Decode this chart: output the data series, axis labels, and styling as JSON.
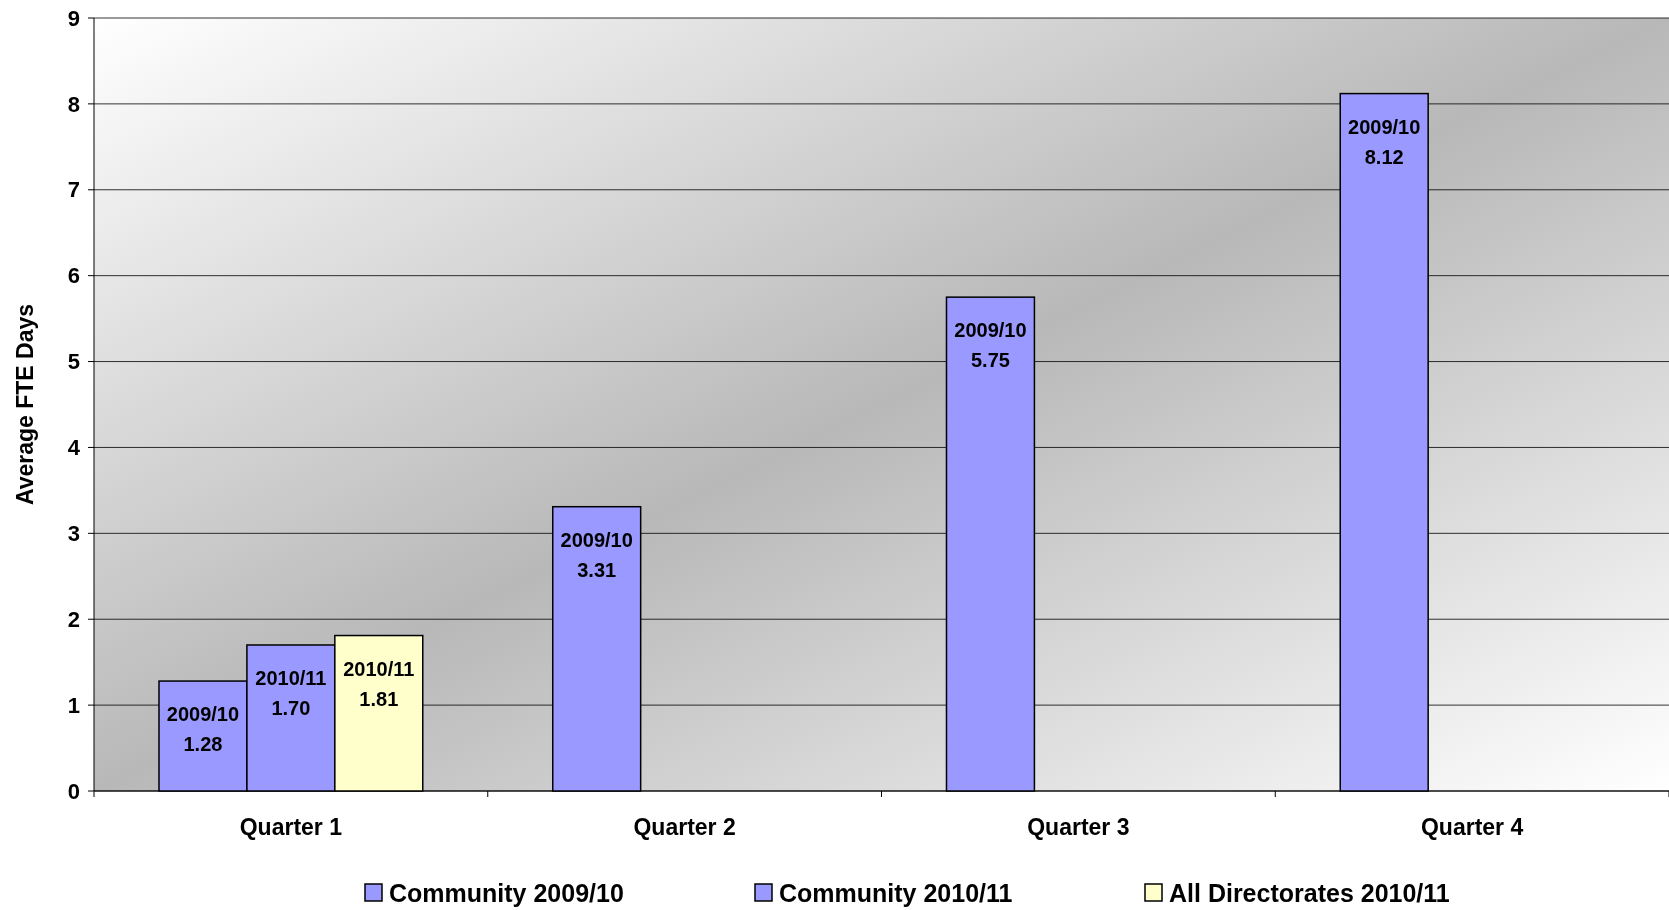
{
  "chart_data": {
    "type": "bar",
    "ylabel": "Average FTE Days",
    "categories": [
      "Quarter 1",
      "Quarter 2",
      "Quarter 3",
      "Quarter 4"
    ],
    "series": [
      {
        "name": "Community 2009/10",
        "color": "#9999ff",
        "values": [
          1.28,
          3.31,
          5.75,
          8.12
        ],
        "value_labels": [
          "2009/10\n1.28",
          "2009/10\n3.31",
          "2009/10\n5.75",
          "2009/10\n8.12"
        ]
      },
      {
        "name": "Community 2010/11",
        "color": "#9999ff",
        "values": [
          1.7,
          null,
          null,
          null
        ],
        "value_labels": [
          "2010/11\n1.70",
          null,
          null,
          null
        ]
      },
      {
        "name": "All Directorates 2010/11",
        "color": "#ffffcc",
        "values": [
          1.81,
          null,
          null,
          null
        ],
        "value_labels": [
          "2010/11\n1.81",
          null,
          null,
          null
        ]
      }
    ],
    "ylim": [
      0,
      9
    ],
    "yticks": [
      0,
      1,
      2,
      3,
      4,
      5,
      6,
      7,
      8,
      9
    ],
    "grid": "y",
    "legend": "bottom"
  }
}
